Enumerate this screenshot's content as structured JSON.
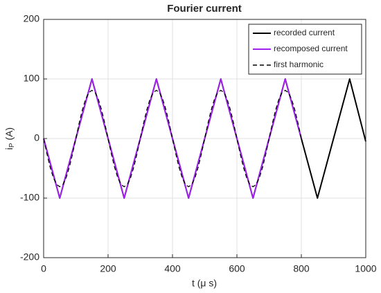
{
  "chart_data": {
    "type": "line",
    "title": "Fourier current",
    "x_label": "t (μ s)",
    "y_label_symbol": "i",
    "y_label_subscript": "P",
    "y_label_unit": "(A)",
    "xlim": [
      0,
      1000
    ],
    "xticks": [
      0,
      200,
      400,
      600,
      800,
      1000
    ],
    "ylim": [
      -200,
      200
    ],
    "yticks": [
      -200,
      -100,
      0,
      100,
      200
    ],
    "grid": true,
    "legend": "upper right",
    "series": [
      {
        "name": "recorded current",
        "color": "#000000",
        "linestyle": "solid",
        "x": [
          0,
          50,
          150,
          250,
          350,
          450,
          550,
          650,
          750,
          850,
          950,
          1000
        ],
        "values": [
          0,
          -100,
          100,
          -100,
          100,
          -100,
          100,
          -100,
          100,
          -100,
          100,
          -5
        ]
      },
      {
        "name": "recomposed current",
        "color": "#a020f0",
        "linestyle": "solid",
        "x": [
          0,
          50,
          150,
          250,
          350,
          450,
          550,
          650,
          750,
          800
        ],
        "values": [
          0,
          -100,
          100,
          -100,
          100,
          -100,
          100,
          -100,
          100,
          0
        ]
      },
      {
        "name": "first harmonic",
        "color": "#000000",
        "linestyle": "dashed",
        "x": [
          0,
          10,
          20,
          30,
          40,
          50,
          60,
          70,
          80,
          90,
          100,
          110,
          120,
          130,
          140,
          150,
          160,
          170,
          180,
          190,
          200,
          210,
          220,
          230,
          240,
          250,
          260,
          270,
          280,
          290,
          300,
          310,
          320,
          330,
          340,
          350,
          360,
          370,
          380,
          390,
          400,
          410,
          420,
          430,
          440,
          450,
          460,
          470,
          480,
          490,
          500,
          510,
          520,
          530,
          540,
          550,
          560,
          570,
          580,
          590,
          600,
          610,
          620,
          630,
          640,
          650,
          660,
          670,
          680,
          690,
          700,
          710,
          720,
          730,
          740,
          750,
          760,
          770,
          780,
          790,
          800
        ],
        "values": [
          0,
          -25,
          -47.6,
          -65.5,
          -77,
          -81,
          -77,
          -65.5,
          -47.6,
          -25,
          0,
          25,
          47.6,
          65.5,
          77,
          81,
          77,
          65.5,
          47.6,
          25,
          0,
          -25,
          -47.6,
          -65.5,
          -77,
          -81,
          -77,
          -65.5,
          -47.6,
          -25,
          0,
          25,
          47.6,
          65.5,
          77,
          81,
          77,
          65.5,
          47.6,
          25,
          0,
          -25,
          -47.6,
          -65.5,
          -77,
          -81,
          -77,
          -65.5,
          -47.6,
          -25,
          0,
          25,
          47.6,
          65.5,
          77,
          81,
          77,
          65.5,
          47.6,
          25,
          0,
          -25,
          -47.6,
          -65.5,
          -77,
          -81,
          -77,
          -65.5,
          -47.6,
          -25,
          0,
          25,
          47.6,
          65.5,
          77,
          81,
          77,
          65.5,
          47.6,
          25,
          0
        ]
      }
    ]
  }
}
